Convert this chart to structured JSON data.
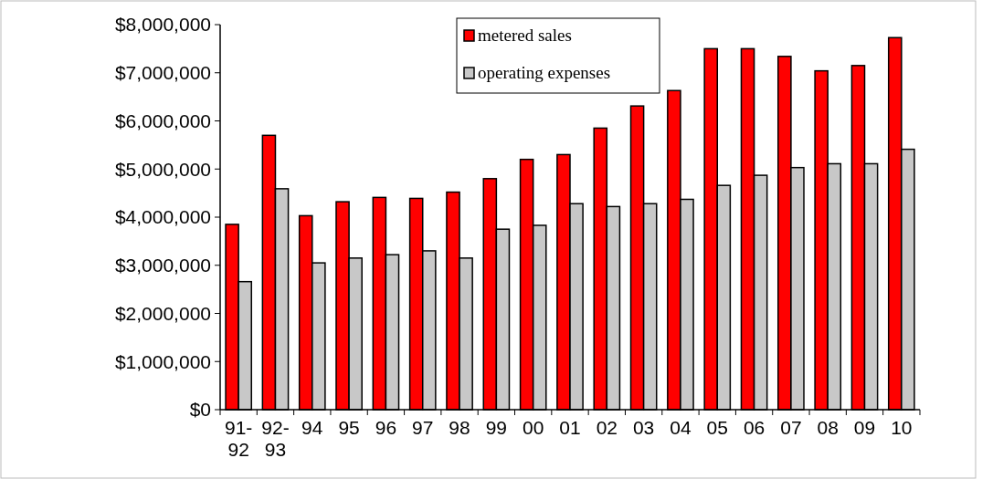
{
  "chart_data": {
    "type": "bar",
    "categories": [
      "91-92",
      "92-93",
      "94",
      "95",
      "96",
      "97",
      "98",
      "99",
      "00",
      "01",
      "02",
      "03",
      "04",
      "05",
      "06",
      "07",
      "08",
      "09",
      "10"
    ],
    "series": [
      {
        "name": "metered sales",
        "color": "#ff0000",
        "values": [
          3850000,
          5700000,
          4030000,
          4320000,
          4410000,
          4390000,
          4520000,
          4800000,
          5200000,
          5300000,
          5850000,
          6310000,
          6630000,
          7500000,
          7500000,
          7340000,
          7040000,
          7150000,
          7730000
        ]
      },
      {
        "name": "operating expenses",
        "color": "#c8c8c8",
        "values": [
          2660000,
          4590000,
          3050000,
          3150000,
          3220000,
          3300000,
          3150000,
          3750000,
          3830000,
          4280000,
          4220000,
          4280000,
          4370000,
          4660000,
          4870000,
          5030000,
          5110000,
          5110000,
          5410000
        ]
      }
    ],
    "ylim": [
      0,
      8000000
    ],
    "yticks": [
      {
        "value": 0,
        "label": "$0"
      },
      {
        "value": 1000000,
        "label": "$1,000,000"
      },
      {
        "value": 2000000,
        "label": "$2,000,000"
      },
      {
        "value": 3000000,
        "label": "$3,000,000"
      },
      {
        "value": 4000000,
        "label": "$4,000,000"
      },
      {
        "value": 5000000,
        "label": "$5,000,000"
      },
      {
        "value": 6000000,
        "label": "$6,000,000"
      },
      {
        "value": 7000000,
        "label": "$7,000,000"
      },
      {
        "value": 8000000,
        "label": "$8,000,000"
      }
    ],
    "legend": "top"
  }
}
